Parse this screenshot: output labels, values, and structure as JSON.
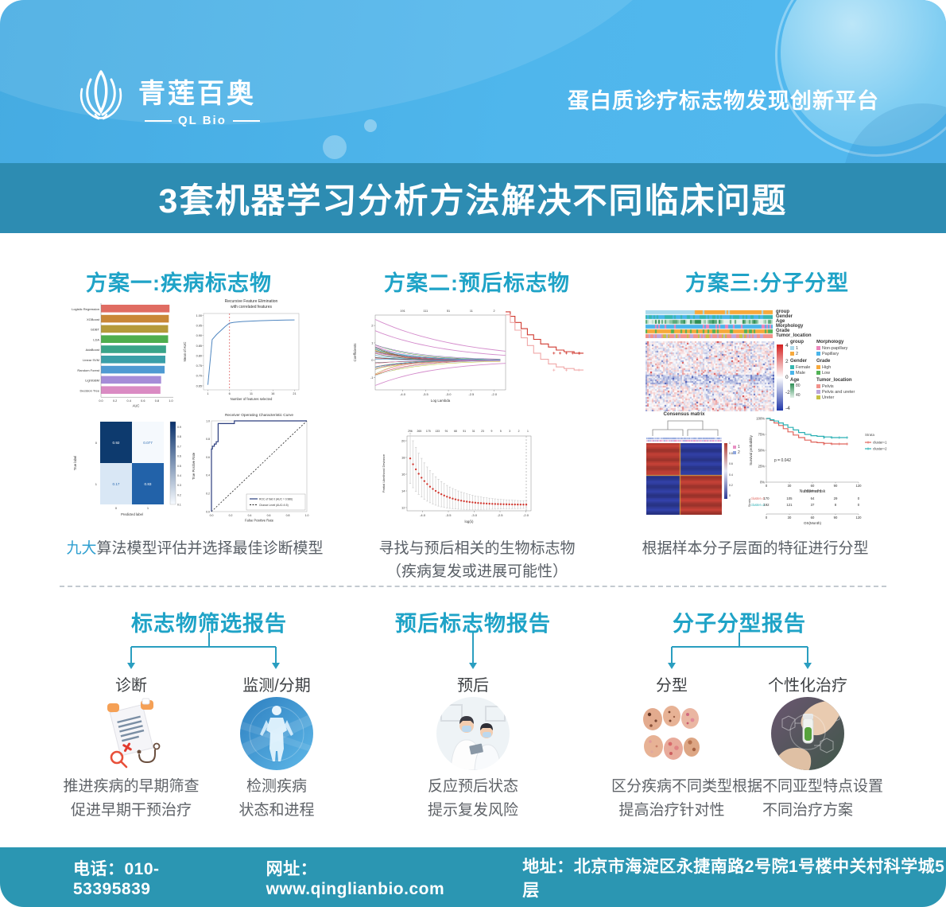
{
  "header": {
    "logo": {
      "brand_cn": "青莲百奥",
      "brand_en": "QL Bio"
    },
    "tagline": "蛋白质诊疗标志物发现创新平台"
  },
  "banner": {
    "title": "3套机器学习分析方法解决不同临床问题"
  },
  "solutions": [
    {
      "title": "方案一:疾病标志物",
      "caption_hl": "九大",
      "caption_rest": "算法模型评估并选择最佳诊断模型"
    },
    {
      "title": "方案二:预后标志物",
      "caption_line1": "寻找与预后相关的生物标志物",
      "caption_line2": "（疾病复发或进展可能性）"
    },
    {
      "title": "方案三:分子分型",
      "caption": "根据样本分子层面的特征进行分型"
    }
  ],
  "reports": [
    {
      "title": "标志物筛选报告",
      "items": [
        {
          "label": "诊断",
          "desc": [
            "推进疾病的早期筛查",
            "促进早期干预治疗"
          ]
        },
        {
          "label": "监测/分期",
          "desc": [
            "检测疾病",
            "状态和进程"
          ]
        }
      ]
    },
    {
      "title": "预后标志物报告",
      "items": [
        {
          "label": "预后",
          "desc": [
            "反应预后状态",
            "提示复发风险"
          ]
        }
      ]
    },
    {
      "title": "分子分型报告",
      "items": [
        {
          "label": "分型",
          "desc": [
            "区分疾病不同类型",
            "提高治疗针对性"
          ]
        },
        {
          "label": "个性化治疗",
          "desc": [
            "根据不同亚型特点设置",
            "不同治疗方案"
          ]
        }
      ]
    }
  ],
  "footer": {
    "phone_label": "电话：",
    "phone": "010-53395839",
    "web_label": "网址：",
    "web": "www.qinglianbio.com",
    "addr_label": "地址：",
    "addr": "北京市海淀区永捷南路2号院1号楼中关村科学城5层"
  },
  "colors": {
    "accent": "#1fa3c7",
    "banner": "#2d8cb2",
    "footer": "#2b96b2",
    "header_blue": "#49b1e6",
    "highlight": "#2f9fd0"
  },
  "chart_data": [
    {
      "id": "auc-bars",
      "type": "bar",
      "categories": [
        "Logistic Regression",
        "XGBoost",
        "GDBT",
        "LDA",
        "AdaBoost",
        "Linear SVM",
        "Random Forest",
        "LightGBM",
        "Decision Tree"
      ],
      "values": [
        0.98,
        0.97,
        0.96,
        0.96,
        0.93,
        0.92,
        0.91,
        0.86,
        0.85
      ],
      "colors": [
        "#e06c62",
        "#c98737",
        "#b59a3a",
        "#4fae4e",
        "#3aa489",
        "#3a9fa8",
        "#4e9ad2",
        "#a58cd8",
        "#da8bc3"
      ],
      "xlabel": "AUC",
      "xlim": [
        0,
        1
      ],
      "xticks": [
        "0.0",
        "0.2",
        "0.4",
        "0.6",
        "0.8",
        "1.0"
      ]
    },
    {
      "id": "rfe",
      "type": "line",
      "title1": "Recursive Feature Elimination",
      "title2": "with correlated features",
      "xlabel": "Number of features selected",
      "ylabel": "Mean of AUC",
      "xticks": [
        1,
        6,
        11,
        16,
        21
      ],
      "yticks": [
        "0.65",
        "0.70",
        "0.75",
        "0.80",
        "0.85",
        "0.90",
        "0.95",
        "1.00"
      ],
      "x": [
        1,
        2,
        3,
        4,
        5,
        6,
        7,
        9,
        11,
        13,
        16,
        19,
        21
      ],
      "y": [
        0.655,
        0.88,
        0.905,
        0.925,
        0.945,
        0.962,
        0.966,
        0.97,
        0.972,
        0.974,
        0.976,
        0.977,
        0.978
      ],
      "vline_x": 6,
      "line_color": "#4f86c0",
      "vline_color": "#e06666"
    },
    {
      "id": "confusion",
      "type": "heatmap",
      "xlabel": "Predicted label",
      "ylabel": "True label",
      "xticks": [
        "0",
        "1"
      ],
      "yticks": [
        "0",
        "1"
      ],
      "values": [
        [
          0.92,
          0.077
        ],
        [
          0.17,
          0.83
        ]
      ],
      "cell_colors": [
        [
          "#0d3a6e",
          "#f5f9fd"
        ],
        [
          "#d9e7f5",
          "#2262a9"
        ]
      ],
      "colorbar_ticks": [
        "0.9",
        "0.8",
        "0.7",
        "0.6",
        "0.5",
        "0.4",
        "0.3",
        "0.2",
        "0.1"
      ]
    },
    {
      "id": "roc",
      "type": "line",
      "title": "Receiver Operating Characteristic Curve",
      "xlabel": "False Positive Rate",
      "ylabel": "True Positive Rate",
      "ticks": [
        "0.0",
        "0.2",
        "0.4",
        "0.6",
        "0.8",
        "1.0"
      ],
      "points": [
        [
          0,
          0
        ],
        [
          0,
          0.69
        ],
        [
          0.01,
          0.69
        ],
        [
          0.01,
          0.72
        ],
        [
          0.03,
          0.72
        ],
        [
          0.03,
          0.745
        ],
        [
          0.05,
          0.745
        ],
        [
          0.05,
          0.77
        ],
        [
          0.07,
          0.77
        ],
        [
          0.07,
          0.97
        ],
        [
          0.24,
          0.97
        ],
        [
          0.24,
          1.0
        ],
        [
          1,
          1
        ]
      ],
      "legend": [
        "ROC of fold 0 (AUC = 0.986)",
        "Chance Level (AUC=0.5)"
      ],
      "curve_color": "#2c3e7e"
    },
    {
      "id": "lasso-paths",
      "type": "line",
      "xlabel": "Log Lambda",
      "ylabel": "Coefficients",
      "xticks": [
        "-4.0",
        "-3.5",
        "-3.0",
        "-2.5",
        "-2.0"
      ],
      "yticks": [
        "-1",
        "0",
        "1",
        "2"
      ],
      "top_axis": [
        "191",
        "111",
        "51",
        "11",
        "2"
      ],
      "n_lines": 42,
      "highlight_coefs": [
        2.35,
        1.7,
        -1.45
      ],
      "highlight_color": "#d48ccc"
    },
    {
      "id": "km-small",
      "type": "line",
      "series": [
        {
          "color": "#d03a30",
          "x": [
            0,
            6,
            12,
            20,
            28,
            36,
            45,
            55,
            65,
            75,
            88,
            100
          ],
          "y": [
            98,
            95,
            91,
            87,
            83,
            80,
            77,
            75,
            73,
            72,
            71,
            71
          ]
        },
        {
          "color": "#f0a8a8",
          "x": [
            0,
            6,
            12,
            20,
            28,
            36,
            45,
            55,
            65,
            75,
            88,
            100
          ],
          "y": [
            96,
            91,
            86,
            81,
            76,
            71,
            67,
            64,
            62,
            61,
            60,
            60
          ]
        }
      ]
    },
    {
      "id": "cv-lasso",
      "type": "scatter",
      "xlabel": "log(λ)",
      "ylabel": "Partial Likelihood Deviance",
      "xticks": [
        "-4.0",
        "-3.5",
        "-3.0",
        "-2.5",
        "-2.0"
      ],
      "yticks": [
        "12",
        "14",
        "16",
        "18",
        "20"
      ],
      "top_axis": [
        "296",
        "265",
        "175",
        "133",
        "91",
        "68",
        "51",
        "31",
        "23",
        "9",
        "5",
        "3",
        "2",
        "1"
      ],
      "n_points": 42,
      "dot_color": "#d23b33",
      "errbar_color": "#c8c8c8"
    },
    {
      "id": "molecular-heatmap",
      "type": "heatmap",
      "colorbar_ticks": [
        "4",
        "2",
        "0",
        "-2",
        "-4"
      ],
      "tracks": [
        {
          "name": "group",
          "split": 0.38,
          "colors": [
            "#a9d9ec",
            "#f7a93c"
          ]
        },
        {
          "name": "Gender",
          "colors": [
            "#35b6b0",
            "#4ab5ea"
          ]
        },
        {
          "name": "Age",
          "colors": [
            "#e3f0e8",
            "#b7dcc5",
            "#8cc6a4",
            "#5bab7c",
            "#2e8f55"
          ]
        },
        {
          "name": "Morphology",
          "colors": [
            "#4ab5ea",
            "#4ab5ea",
            "#4ab5ea",
            "#ec85bc"
          ]
        },
        {
          "name": "Grade",
          "colors": [
            "#f7a93c",
            "#f7a93c",
            "#f7a93c",
            "#52b356"
          ]
        },
        {
          "name": "Tumor_location",
          "colors": [
            "#f2918a",
            "#bba6dc",
            "#c6c045",
            "#f2918a"
          ]
        }
      ],
      "legends": [
        {
          "title": "group",
          "entries": [
            {
              "label": "1",
              "color": "#a9d9ec"
            },
            {
              "label": "2",
              "color": "#f7a93c"
            }
          ]
        },
        {
          "title": "Gender",
          "entries": [
            {
              "label": "Female",
              "color": "#35b6b0"
            },
            {
              "label": "Male",
              "color": "#4ab5ea"
            }
          ]
        },
        {
          "title": "Age",
          "gradient": [
            "#2e8f55",
            "#e3f0e8"
          ],
          "ticks": [
            "80",
            "40"
          ]
        },
        {
          "title": "Morphology",
          "entries": [
            {
              "label": "Non-papillary",
              "color": "#ec85bc"
            },
            {
              "label": "Papillary",
              "color": "#4ab5ea"
            }
          ]
        },
        {
          "title": "Grade",
          "entries": [
            {
              "label": "High",
              "color": "#f7a93c"
            },
            {
              "label": "Low",
              "color": "#52b356"
            }
          ]
        },
        {
          "title": "Tumor_location",
          "entries": [
            {
              "label": "Pelvis",
              "color": "#f2918a"
            },
            {
              "label": "Pelvis and ureter",
              "color": "#bba6dc"
            },
            {
              "label": "Ureter",
              "color": "#c6c045"
            }
          ]
        }
      ]
    },
    {
      "id": "consensus",
      "type": "heatmap",
      "title": "Consensus matrix",
      "clusters": [
        {
          "label": "1",
          "color": "#e890c4"
        },
        {
          "label": "2",
          "color": "#8fa6dd"
        }
      ],
      "colorbar_ticks": [
        "1",
        "0.8",
        "0.6",
        "0.4",
        "0.2",
        "0"
      ],
      "block_colors": {
        "high": "#b03a31",
        "low": "#2d3a96"
      }
    },
    {
      "id": "km-main",
      "type": "line",
      "ylabel": "Survival probability",
      "xlabel": "OS(Month)",
      "yticks": [
        "100%",
        "75%",
        "50%",
        "25%",
        "0%"
      ],
      "xticks": [
        0,
        30,
        60,
        90,
        120
      ],
      "p_value": "p = 0.042",
      "legend_title": "Strata",
      "series": [
        {
          "name": "cluster=1",
          "color": "#e0655c",
          "x": [
            0,
            5,
            10,
            16,
            22,
            28,
            35,
            42,
            50,
            58,
            66,
            75,
            85,
            95,
            105
          ],
          "y": [
            100,
            97,
            93,
            89,
            84,
            79,
            74,
            70,
            66,
            63,
            62,
            61,
            60,
            60,
            60
          ]
        },
        {
          "name": "cluster=2",
          "color": "#2ab0b4",
          "x": [
            0,
            5,
            10,
            16,
            22,
            28,
            35,
            42,
            50,
            58,
            66,
            75,
            85,
            95,
            105
          ],
          "y": [
            100,
            98,
            96,
            93,
            90,
            86,
            82,
            78,
            75,
            73,
            72,
            71,
            70,
            70,
            70
          ]
        }
      ],
      "risk_table": {
        "title": "Number at risk",
        "strata_label": "Strata",
        "rows": [
          {
            "label": "cluster=1",
            "color": "#e0655c",
            "values": [
              170,
              105,
              64,
              29,
              0
            ]
          },
          {
            "label": "cluster=2",
            "color": "#2ab0b4",
            "values": [
              192,
              121,
              37,
              8,
              0
            ]
          }
        ]
      }
    }
  ]
}
